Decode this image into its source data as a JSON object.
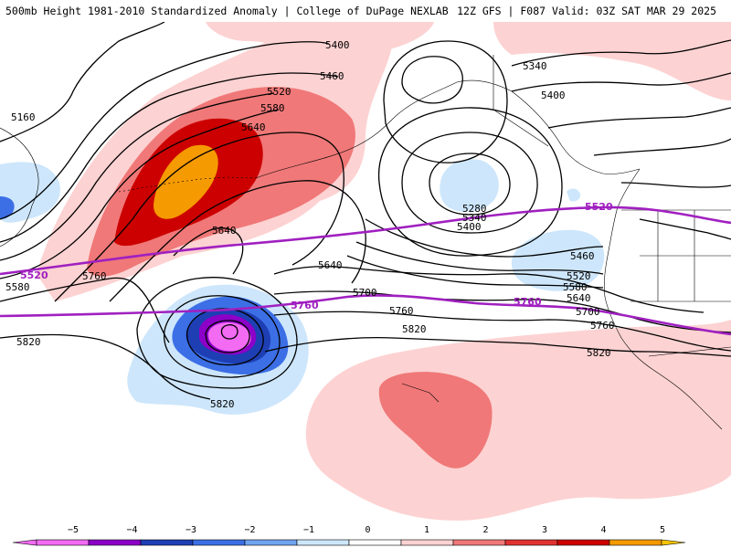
{
  "header": {
    "left": "500mb Height 1981-2010 Standardized Anomaly | College of DuPage NEXLAB",
    "right": "12Z GFS | F087 Valid: 03Z SAT MAR 29 2025"
  },
  "colors": {
    "pos1": "#fdd2d2",
    "pos2": "#f07878",
    "pos3": "#cc0000",
    "pos4": "#f59a00",
    "neg1": "#cde6fb",
    "neg2": "#3c6fe6",
    "neg3": "#1e3fb4",
    "neg4": "#8c00c8",
    "neg5": "#f26bf2",
    "contour": "#000000",
    "climo": "#a020c0"
  },
  "contour_labels": [
    "5160",
    "5400",
    "5460",
    "5520",
    "5580",
    "5640",
    "5640",
    "5760",
    "5580",
    "5640",
    "5700",
    "5760",
    "5820",
    "5820",
    "5340",
    "5400",
    "5280",
    "5340",
    "5400",
    "5460",
    "5520",
    "5580",
    "5640",
    "5700",
    "5760",
    "5820"
  ],
  "climo_labels": [
    "5520",
    "5520",
    "5760",
    "5760"
  ],
  "colorbar": {
    "ticks": [
      "−5",
      "−4",
      "−3",
      "−2",
      "−1",
      "0",
      "1",
      "2",
      "3",
      "4",
      "5"
    ],
    "colors": [
      "#f26bf2",
      "#8c00c8",
      "#1e3fb4",
      "#3c6fe6",
      "#6fa4f0",
      "#cde6fb",
      "#ffffff",
      "#fdd2d2",
      "#f07878",
      "#e13232",
      "#cc0000",
      "#f59a00"
    ]
  }
}
